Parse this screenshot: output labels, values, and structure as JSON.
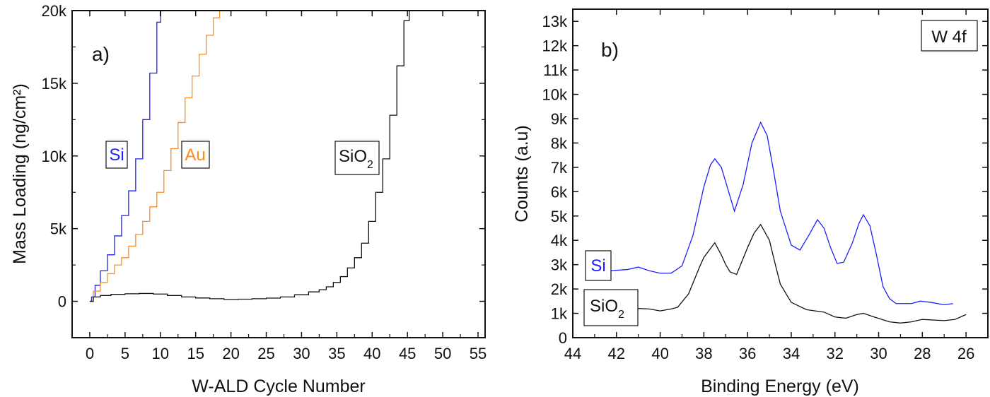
{
  "chart_data": [
    {
      "type": "line",
      "panel_label": "a)",
      "xlabel": "W-ALD Cycle Number",
      "ylabel": "Mass Loading (ng/cm²)",
      "xlim": [
        -2.5,
        56
      ],
      "ylim": [
        -2500,
        20000
      ],
      "xticks": [
        0,
        5,
        10,
        15,
        20,
        25,
        30,
        35,
        40,
        45,
        50,
        55
      ],
      "yticks": [
        0,
        5000,
        10000,
        15000,
        20000
      ],
      "ytick_labels": [
        "0",
        "5k",
        "10k",
        "15k",
        "20k"
      ],
      "grid": false,
      "step": true,
      "series": [
        {
          "name": "Si",
          "color": "#1f1fff",
          "x": [
            0,
            0.5,
            1,
            2,
            3,
            4,
            5,
            6,
            7,
            8,
            9,
            10,
            10.1
          ],
          "y": [
            0,
            300,
            1100,
            2100,
            3200,
            4500,
            5900,
            7600,
            9800,
            12500,
            15700,
            19200,
            20000
          ]
        },
        {
          "name": "Au",
          "color": "#ff8c1a",
          "x": [
            0,
            1,
            2,
            3,
            4,
            5,
            6,
            7,
            8,
            9,
            10,
            11,
            12,
            13,
            14,
            15,
            16,
            17,
            18,
            18.8
          ],
          "y": [
            0,
            700,
            1300,
            1900,
            2500,
            3000,
            3800,
            4600,
            5500,
            6500,
            7500,
            9000,
            10500,
            12300,
            14000,
            15500,
            17000,
            18300,
            19500,
            20000
          ]
        },
        {
          "name": "SiO2",
          "color": "#111111",
          "x": [
            0,
            1,
            2,
            4,
            6,
            8,
            10,
            12,
            14,
            16,
            18,
            20,
            22,
            24,
            26,
            28,
            30,
            32,
            33,
            34,
            35,
            36,
            37,
            38,
            39,
            40,
            41,
            42,
            43,
            44,
            45,
            45.5
          ],
          "y": [
            0,
            300,
            400,
            480,
            520,
            540,
            500,
            400,
            300,
            230,
            180,
            130,
            150,
            180,
            220,
            300,
            450,
            650,
            800,
            1000,
            1300,
            1700,
            2300,
            3000,
            4000,
            5500,
            7500,
            9800,
            12800,
            16200,
            19300,
            20000
          ]
        }
      ],
      "annotations": [
        {
          "text": "Si",
          "sub": "",
          "color": "#1f1fff"
        },
        {
          "text": "Au",
          "sub": "",
          "color": "#ff8c1a"
        },
        {
          "text": "SiO",
          "sub": "2",
          "color": "#111111"
        }
      ]
    },
    {
      "type": "line",
      "panel_label": "b)",
      "xlabel": "Binding Energy (eV)",
      "ylabel": "Counts (a.u)",
      "xlim": [
        44,
        25
      ],
      "ylim": [
        0,
        13500
      ],
      "xticks": [
        44,
        42,
        40,
        38,
        36,
        34,
        32,
        30,
        28,
        26
      ],
      "yticks": [
        0,
        1000,
        2000,
        3000,
        4000,
        5000,
        6000,
        7000,
        8000,
        9000,
        10000,
        11000,
        12000,
        13000
      ],
      "ytick_labels": [
        "0",
        "1k",
        "2k",
        "3k",
        "4k",
        "5k",
        "6k",
        "7k",
        "8k",
        "9k",
        "10k",
        "11k",
        "12k",
        "13k"
      ],
      "grid": false,
      "step": false,
      "inset_label": "W 4f",
      "series": [
        {
          "name": "Si",
          "color": "#1f1fff",
          "x": [
            42.3,
            41.5,
            41,
            40.5,
            40,
            39.5,
            39,
            38.5,
            38,
            37.7,
            37.5,
            37.2,
            37,
            36.6,
            36.2,
            35.8,
            35.4,
            35.1,
            34.8,
            34.5,
            34,
            33.6,
            33.2,
            32.8,
            32.5,
            32.2,
            31.9,
            31.6,
            31.2,
            30.9,
            30.7,
            30.4,
            30.1,
            29.8,
            29.5,
            29.2,
            28.5,
            28.1,
            27.6,
            27,
            26.6
          ],
          "y": [
            2750,
            2800,
            2900,
            2750,
            2650,
            2650,
            2950,
            4200,
            6200,
            7100,
            7350,
            7000,
            6400,
            5200,
            6300,
            8000,
            8850,
            8300,
            6800,
            5200,
            3800,
            3600,
            4200,
            4850,
            4500,
            3700,
            3050,
            3100,
            3900,
            4700,
            5050,
            4600,
            3400,
            2100,
            1600,
            1400,
            1400,
            1500,
            1450,
            1350,
            1400
          ]
        },
        {
          "name": "SiO2",
          "color": "#111111",
          "x": [
            41.8,
            41,
            40.5,
            40,
            39.5,
            39.2,
            38.7,
            38.2,
            38,
            37.5,
            37.2,
            37,
            36.8,
            36.5,
            36,
            35.7,
            35.4,
            35,
            34.7,
            34.5,
            34,
            33.3,
            32.5,
            32,
            31.5,
            31,
            30.7,
            30.2,
            29.5,
            29,
            28.5,
            28,
            27,
            26.5,
            26
          ],
          "y": [
            1250,
            1200,
            1180,
            1100,
            1180,
            1250,
            1800,
            2900,
            3300,
            3900,
            3400,
            3000,
            2700,
            2600,
            3700,
            4300,
            4650,
            4000,
            2900,
            2200,
            1450,
            1150,
            1050,
            850,
            800,
            950,
            1000,
            850,
            650,
            600,
            650,
            750,
            700,
            750,
            950
          ]
        }
      ],
      "annotations": [
        {
          "text": "Si",
          "sub": "",
          "color": "#1f1fff"
        },
        {
          "text": "SiO",
          "sub": "2",
          "color": "#111111"
        }
      ]
    }
  ]
}
